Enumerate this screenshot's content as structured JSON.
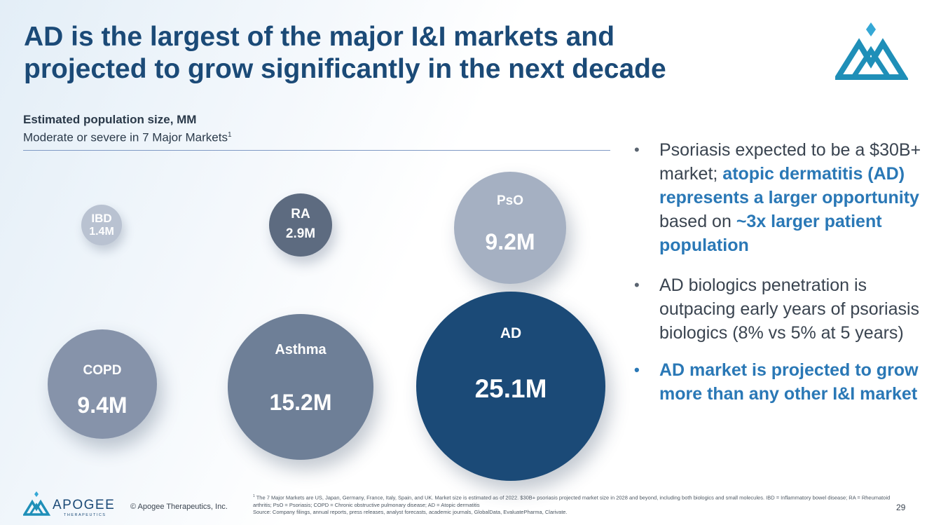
{
  "title": {
    "line1": "AD is the largest of the major I&I markets and",
    "line2": "projected to grow significantly in the next decade"
  },
  "subhead": {
    "bold": "Estimated population size, MM",
    "normal": "Moderate or severe in 7 Major Markets",
    "superscript": "1"
  },
  "bubbles": [
    {
      "label": "IBD",
      "value": "1.4M",
      "color": "#b9c2d1"
    },
    {
      "label": "RA",
      "value": "2.9M",
      "color": "#5d6b80"
    },
    {
      "label": "PsO",
      "value": "9.2M",
      "color": "#a5b0c2"
    },
    {
      "label": "COPD",
      "value": "9.4M",
      "color": "#8693aa"
    },
    {
      "label": "Asthma",
      "value": "15.2M",
      "color": "#6e7f97"
    },
    {
      "label": "AD",
      "value": "25.1M",
      "color": "#1b4a77"
    }
  ],
  "bullets": {
    "dot": "•",
    "b1_plain1": "Psoriasis expected to be a $30B+ market; ",
    "b1_hl1": "atopic dermatitis (AD) represents a larger opportunity",
    "b1_plain2": " based on ",
    "b1_hl2": "~3x larger patient population",
    "b2": "AD biologics penetration is outpacing early years of psoriasis biologics (8% vs 5% at 5 years)",
    "b3": "AD market is projected to grow more than any other I&I market"
  },
  "footer": {
    "brand": "APOGEE",
    "brand_sub": "THERAPEUTICS",
    "copyright": "© Apogee Therapeutics, Inc.",
    "footnote_sup": "1",
    "footnote_line1": " The 7 Major Markets are US, Japan, Germany, France, Italy, Spain, and UK. Market size is estimated as of 2022. $30B+ psoriasis projected market size in 2028 and beyond, including both biologics and small molecules. IBD = Inflammatory bowel disease; RA = Rheumatoid arthritis; PsO = Psoriasis; COPD = Chronic obstructive pulmonary disease; AD = Atopic dermatitis",
    "footnote_line2": "Source: Company filings, annual reports, press releases, analyst forecasts, academic journals, GlobalData, EvaluatePharma, Clarivate.",
    "page": "29"
  },
  "colors": {
    "title": "#1b4a77",
    "accent": "#2a78b6",
    "logo": "#1f8fb8"
  }
}
